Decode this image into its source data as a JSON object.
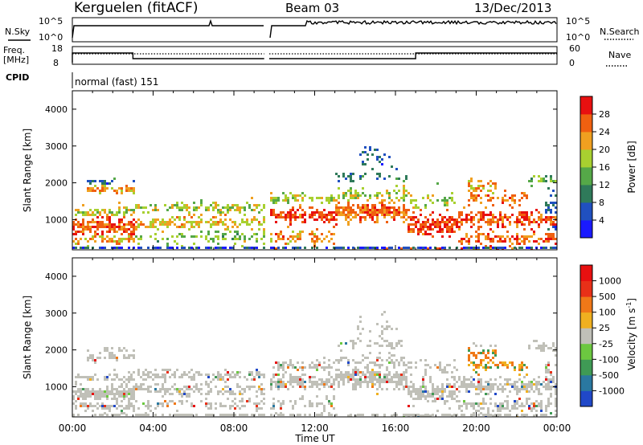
{
  "header": {
    "station": "Kerguelen (fitACF)",
    "beam": "Beam 03",
    "date": "13/Dec/2013"
  },
  "aux_panels": {
    "nsky_label": "N.Sky",
    "nsearch_label": "N.Search",
    "freq_label_top": "Freq.",
    "freq_label_bottom": "[MHz]",
    "nave_label": "Nave",
    "cpid_label": "CPID",
    "cpid_text": "normal (fast) 151",
    "noise_left_ticks": [
      "10^5",
      "10^0"
    ],
    "noise_right_ticks": [
      "10^5",
      "10^0"
    ],
    "freq_left_ticks": [
      "18",
      "8"
    ],
    "freq_right_ticks": [
      "60",
      "0"
    ]
  },
  "chart_data": [
    {
      "type": "heatmap",
      "name": "power",
      "ylabel": "Slant Range [km]",
      "ylim": [
        180,
        4500
      ],
      "yticks": [
        1000,
        2000,
        3000,
        4000
      ],
      "xlim_hours": [
        0,
        24
      ],
      "colorbar": {
        "label": "Power [dB]",
        "ticks": [
          "4",
          "8",
          "12",
          "16",
          "20",
          "24",
          "28"
        ],
        "colors": [
          "#1a1aff",
          "#2050c0",
          "#2f7a5a",
          "#55a848",
          "#a8d030",
          "#f0a020",
          "#f06010",
          "#e81010"
        ]
      }
    },
    {
      "type": "heatmap",
      "name": "velocity",
      "ylabel": "Slant Range [km]",
      "ylim": [
        180,
        4500
      ],
      "yticks": [
        1000,
        2000,
        3000,
        4000
      ],
      "xlim_hours": [
        0,
        24
      ],
      "xlabel": "Time UT",
      "xticks": [
        "00:00",
        "04:00",
        "08:00",
        "12:00",
        "16:00",
        "20:00",
        "00:00"
      ],
      "colorbar": {
        "label": "Velocity [m s",
        "label_sup": "-1",
        "label_end": "]",
        "ticks": [
          "1000",
          "500",
          "100",
          "25",
          "-25",
          "-100",
          "-500",
          "-1000"
        ],
        "colors": [
          "#2048c8",
          "#2a78a0",
          "#3f9a55",
          "#6cc840",
          "#c0c0b8",
          "#f0b020",
          "#f07818",
          "#e83018",
          "#e81010"
        ]
      }
    }
  ]
}
